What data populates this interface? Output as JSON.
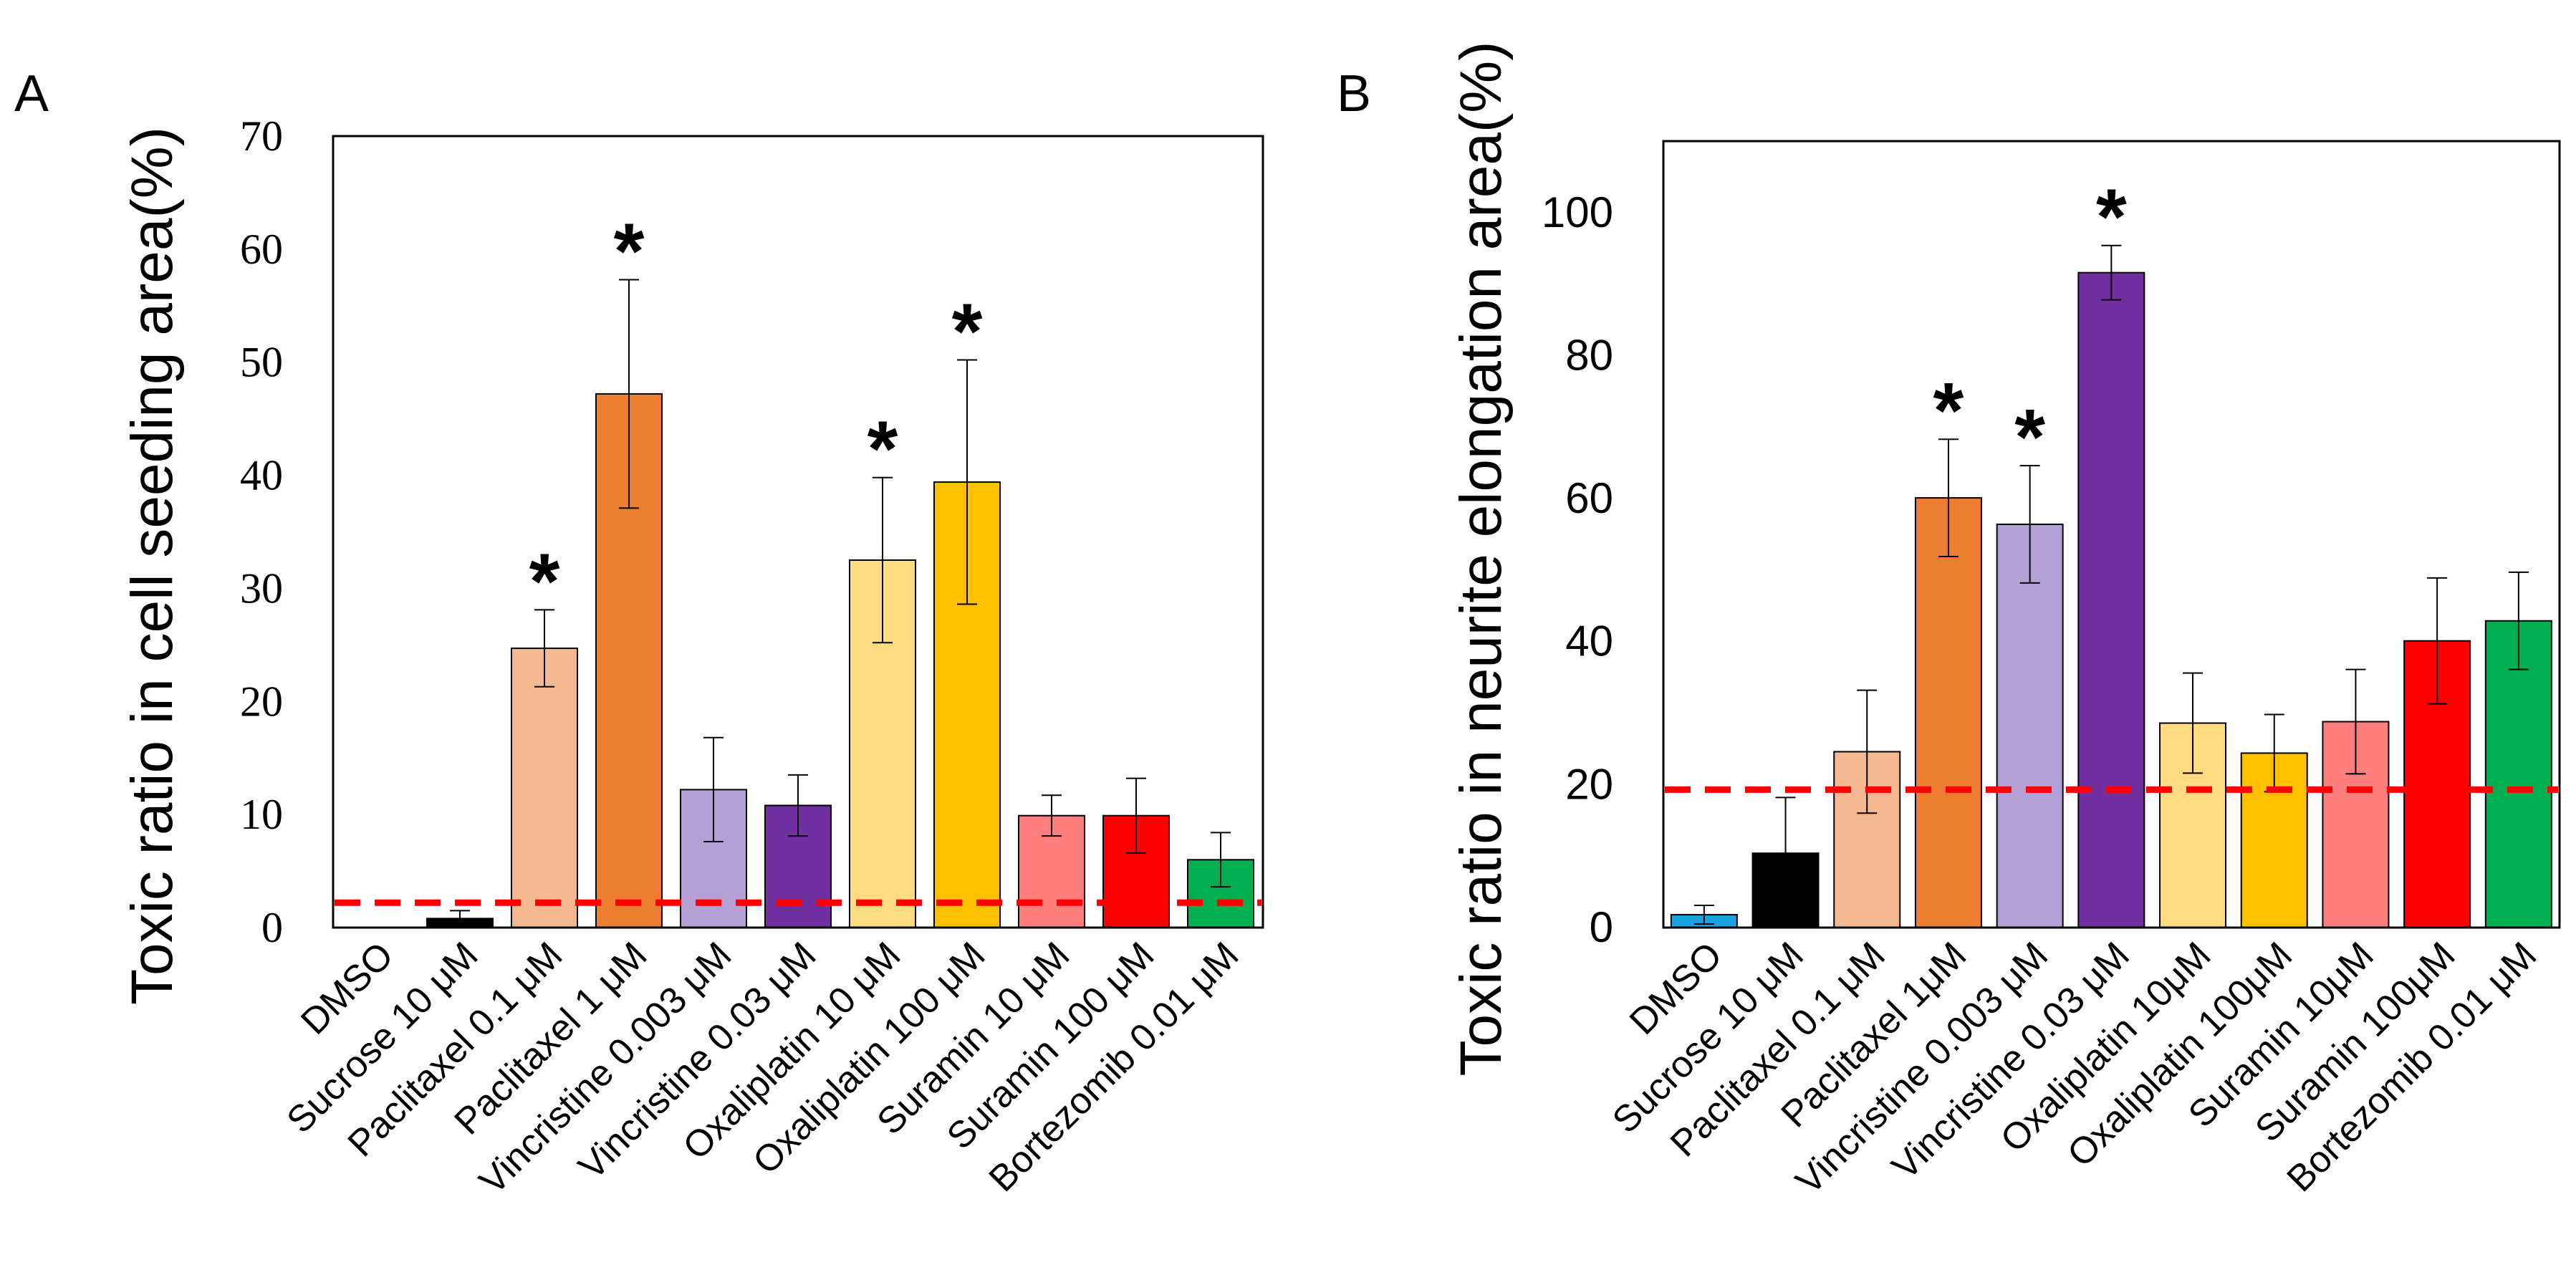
{
  "colors": {
    "dmso_b": "#1ba1e2",
    "sucrose": "#000000",
    "paclitaxel_low": "#f4b990",
    "paclitaxel_high": "#ed7d31",
    "vincristine_low": "#b4a0d4",
    "vincristine_high": "#7030a0",
    "oxaliplatin_low": "#ffdc82",
    "oxaliplatin_high": "#ffc000",
    "suramin_low": "#ff7f7f",
    "suramin_high": "#ff0000",
    "bortezomib": "#00b050",
    "threshold_line": "#ff0000"
  },
  "chart_data": [
    {
      "panel": "A",
      "type": "bar",
      "ylabel": "Toxic ratio in cell seeding area(%)",
      "ylim": [
        0,
        70
      ],
      "yticks": [
        0,
        10,
        20,
        30,
        40,
        50,
        60,
        70
      ],
      "categories": [
        "DMSO",
        "Sucrose 10 μM",
        "Paclitaxel 0.1 μM",
        "Paclitaxel 1 μM",
        "Vincristine 0.003 μM",
        "Vincristine 0.03 μM",
        "Oxaliplatin 10 μM",
        "Oxaliplatin 100 μM",
        "Suramin 10 μM",
        "Suramin 100 μM",
        "Bortezomib 0.01 μM"
      ],
      "values": [
        0,
        0.8,
        24.7,
        47.2,
        12.2,
        10.8,
        32.5,
        39.4,
        9.9,
        9.9,
        6.0
      ],
      "errors": [
        0,
        0.7,
        3.4,
        10.1,
        4.6,
        2.7,
        7.3,
        10.8,
        1.8,
        3.3,
        2.4
      ],
      "significant": [
        false,
        false,
        true,
        true,
        false,
        false,
        true,
        true,
        false,
        false,
        false
      ],
      "colors": [
        "#ffffff",
        "#000000",
        "#f4b990",
        "#ed7d31",
        "#b4a0d4",
        "#7030a0",
        "#ffdc82",
        "#ffc000",
        "#ff7f7f",
        "#ff0000",
        "#00b050"
      ],
      "threshold": 2.2,
      "significance_marker": "*"
    },
    {
      "panel": "B",
      "type": "bar",
      "ylabel": "Toxic ratio in neurite elongation area(%)",
      "ylim": [
        0,
        110
      ],
      "yticks": [
        0,
        20,
        40,
        60,
        80,
        100
      ],
      "categories": [
        "DMSO",
        "Sucrose 10 μM",
        "Paclitaxel 0.1 μM",
        "Paclitaxel 1μM",
        "Vincristine 0.003 μM",
        "Vincristine 0.03 μM",
        "Oxaliplatin 10μM",
        "Oxaliplatin 100μM",
        "Suramin 10μM",
        "Suramin 100μM",
        "Bortezomib 0.01 μM"
      ],
      "values": [
        1.8,
        10.4,
        24.6,
        60.1,
        56.4,
        91.6,
        28.6,
        24.4,
        28.8,
        40.1,
        42.9
      ],
      "errors": [
        1.3,
        7.8,
        8.6,
        8.2,
        8.2,
        3.8,
        7.0,
        5.4,
        7.3,
        8.8,
        6.8
      ],
      "significant": [
        false,
        false,
        false,
        true,
        true,
        true,
        false,
        false,
        false,
        false,
        false
      ],
      "colors": [
        "#1ba1e2",
        "#000000",
        "#f4b990",
        "#ed7d31",
        "#b4a0d4",
        "#7030a0",
        "#ffdc82",
        "#ffc000",
        "#ff7f7f",
        "#ff0000",
        "#00b050"
      ],
      "threshold": 19.3,
      "significance_marker": "*"
    }
  ]
}
